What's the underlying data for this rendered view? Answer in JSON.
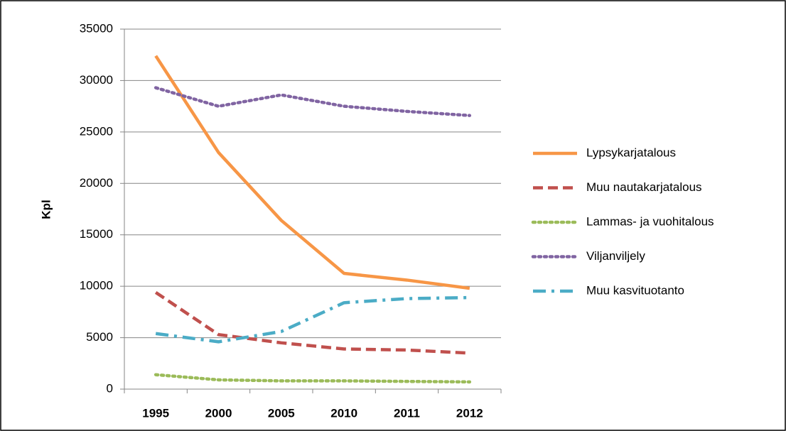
{
  "chart_data": {
    "type": "line",
    "y_label": "Kpl",
    "categories": [
      "1995",
      "2000",
      "2005",
      "2010",
      "2011",
      "2012"
    ],
    "ylim": [
      0,
      35000
    ],
    "yticks": [
      0,
      5000,
      10000,
      15000,
      20000,
      25000,
      30000,
      35000
    ],
    "grid": true,
    "legend": "right",
    "series": [
      {
        "name": "Lypsykarjatalous",
        "color": "#f79646",
        "style": "solid",
        "values": [
          32400,
          23000,
          16400,
          11250,
          10600,
          9800
        ]
      },
      {
        "name": "Muu nautakarjatalous",
        "color": "#c0504d",
        "style": "dashed",
        "values": [
          9400,
          5300,
          4500,
          3900,
          3800,
          3500
        ]
      },
      {
        "name": "Lammas- ja vuohitalous",
        "color": "#9bbb59",
        "style": "dotted",
        "values": [
          1400,
          900,
          800,
          800,
          750,
          700
        ]
      },
      {
        "name": "Viljanviljely",
        "color": "#8064a2",
        "style": "dotted",
        "values": [
          29300,
          27500,
          28600,
          27500,
          27000,
          26600
        ]
      },
      {
        "name": "Muu kasvituotanto",
        "color": "#4bacc6",
        "style": "dash-dot",
        "values": [
          5400,
          4600,
          5600,
          8400,
          8800,
          8900
        ]
      }
    ]
  }
}
